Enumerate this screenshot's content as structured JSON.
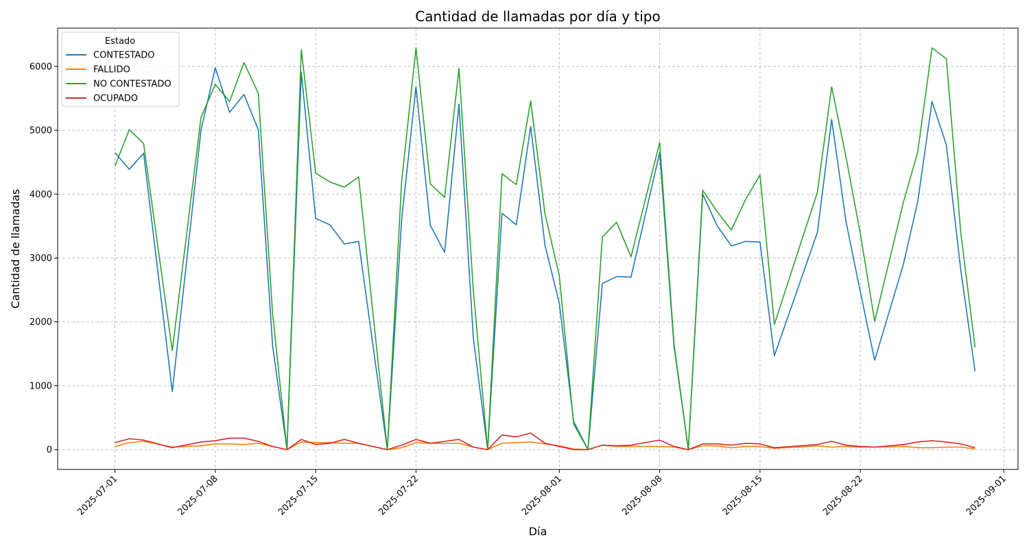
{
  "chart_data": {
    "type": "line",
    "title": "Cantidad de llamadas por día y tipo",
    "xlabel": "Día",
    "ylabel": "Cantidad de llamadas",
    "x_range": [
      "2025-06-27",
      "2025-09-02"
    ],
    "ylim": [
      -310,
      6600
    ],
    "grid": true,
    "legend": {
      "title": "Estado",
      "placement": "top-left"
    },
    "x_ticks": [
      "2025-07-01",
      "2025-07-08",
      "2025-07-15",
      "2025-07-22",
      "2025-08-01",
      "2025-08-08",
      "2025-08-15",
      "2025-08-22",
      "2025-09-01"
    ],
    "y_ticks": [
      0,
      1000,
      2000,
      3000,
      4000,
      5000,
      6000
    ],
    "x": [
      "2025-07-01",
      "2025-07-02",
      "2025-07-03",
      "2025-07-04",
      "2025-07-05",
      "2025-07-06",
      "2025-07-07",
      "2025-07-08",
      "2025-07-09",
      "2025-07-10",
      "2025-07-11",
      "2025-07-12",
      "2025-07-13",
      "2025-07-14",
      "2025-07-15",
      "2025-07-16",
      "2025-07-17",
      "2025-07-18",
      "2025-07-19",
      "2025-07-20",
      "2025-07-21",
      "2025-07-22",
      "2025-07-23",
      "2025-07-24",
      "2025-07-25",
      "2025-07-26",
      "2025-07-27",
      "2025-07-28",
      "2025-07-29",
      "2025-07-30",
      "2025-07-31",
      "2025-08-01",
      "2025-08-02",
      "2025-08-03",
      "2025-08-04",
      "2025-08-05",
      "2025-08-06",
      "2025-08-07",
      "2025-08-08",
      "2025-08-09",
      "2025-08-10",
      "2025-08-11",
      "2025-08-12",
      "2025-08-13",
      "2025-08-14",
      "2025-08-15",
      "2025-08-16",
      "2025-08-17",
      "2025-08-18",
      "2025-08-19",
      "2025-08-20",
      "2025-08-21",
      "2025-08-22",
      "2025-08-23",
      "2025-08-24",
      "2025-08-25",
      "2025-08-26",
      "2025-08-27",
      "2025-08-28",
      "2025-08-29",
      "2025-08-30",
      "2025-08-31"
    ],
    "series": [
      {
        "name": "CONTESTADO",
        "color": "#1f77b4",
        "values": [
          4650,
          4390,
          4640,
          null,
          910,
          null,
          5000,
          5980,
          5280,
          5560,
          5010,
          1620,
          0,
          5910,
          3620,
          3520,
          3220,
          3260,
          null,
          0,
          3600,
          5680,
          3510,
          3090,
          5410,
          1750,
          0,
          3700,
          3520,
          5060,
          3200,
          2290,
          440,
          0,
          2600,
          2710,
          2700,
          null,
          4650,
          1620,
          0,
          4000,
          3510,
          3190,
          3260,
          3250,
          1470,
          null,
          null,
          3400,
          5170,
          3570,
          2470,
          1400,
          null,
          2900,
          3880,
          5450,
          4770,
          2820,
          1230,
          null
        ]
      },
      {
        "name": "FALLIDO",
        "color": "#ff7f0e",
        "values": [
          50,
          110,
          130,
          null,
          40,
          null,
          60,
          90,
          90,
          80,
          100,
          50,
          0,
          120,
          110,
          110,
          100,
          100,
          null,
          0,
          30,
          110,
          100,
          100,
          100,
          40,
          0,
          100,
          110,
          120,
          90,
          60,
          10,
          0,
          70,
          50,
          50,
          null,
          50,
          40,
          0,
          60,
          60,
          30,
          50,
          50,
          20,
          null,
          null,
          60,
          40,
          50,
          40,
          40,
          null,
          50,
          30,
          30,
          40,
          40,
          10,
          null
        ]
      },
      {
        "name": "NO CONTESTADO",
        "color": "#2ca02c",
        "values": [
          4440,
          5010,
          4790,
          null,
          1550,
          null,
          5200,
          5720,
          5450,
          6060,
          5580,
          2120,
          0,
          6260,
          4330,
          4190,
          4110,
          4270,
          null,
          0,
          4200,
          6290,
          4160,
          3950,
          5970,
          2490,
          0,
          4320,
          4150,
          5460,
          3690,
          2720,
          400,
          0,
          3330,
          3560,
          3020,
          null,
          4810,
          1660,
          0,
          4060,
          3730,
          3440,
          3920,
          4300,
          1960,
          null,
          null,
          4030,
          5680,
          4580,
          3380,
          2010,
          null,
          3870,
          4660,
          6290,
          6120,
          3410,
          1600,
          null
        ]
      },
      {
        "name": "OCUPADO",
        "color": "#d62728",
        "values": [
          110,
          170,
          150,
          null,
          30,
          null,
          120,
          140,
          180,
          180,
          130,
          50,
          0,
          160,
          80,
          100,
          160,
          100,
          null,
          0,
          70,
          160,
          100,
          130,
          160,
          40,
          0,
          230,
          200,
          260,
          100,
          50,
          0,
          0,
          70,
          60,
          70,
          null,
          150,
          50,
          0,
          90,
          90,
          70,
          100,
          90,
          30,
          null,
          null,
          80,
          130,
          70,
          50,
          40,
          null,
          80,
          120,
          140,
          120,
          90,
          30,
          null
        ]
      }
    ]
  }
}
